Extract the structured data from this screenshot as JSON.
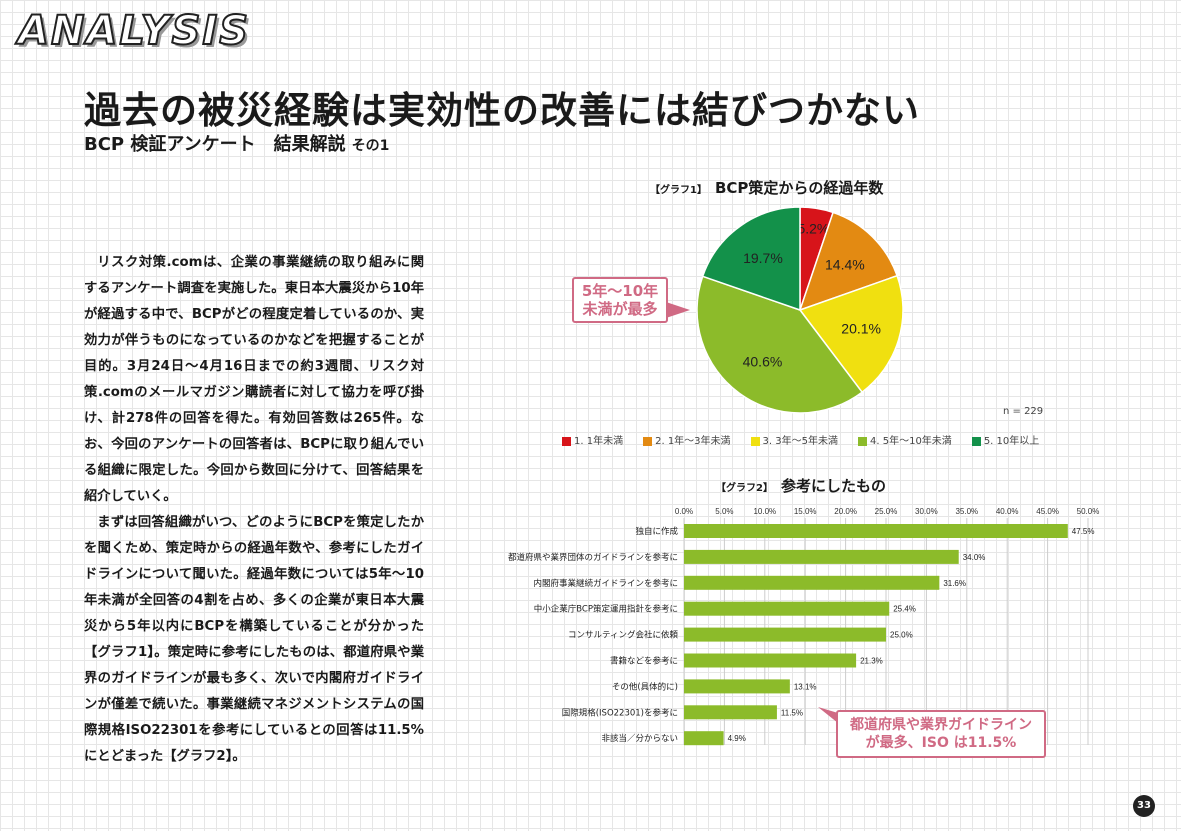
{
  "header": {
    "logo": "ANALYSIS",
    "title": "過去の被災経験は実効性の改善には結びつかない",
    "subtitle": "BCP 検証アンケート　結果解説",
    "subtitle_part": "その1"
  },
  "body": [
    "リスク対策.comは、企業の事業継続の取り組みに関するアンケート調査を実施した。東日本大震災から10年が経過する中で、BCPがどの程度定着しているのか、実効力が伴うものになっているのかなどを把握することが目的。3月24日～4月16日までの約3週間、リスク対策.comのメールマガジン購読者に対して協力を呼び掛け、計278件の回答を得た。有効回答数は265件。なお、今回のアンケートの回答者は、BCPに取り組んでいる組織に限定した。今回から数回に分けて、回答結果を紹介していく。",
    "まずは回答組織がいつ、どのようにBCPを策定したかを聞くため、策定時からの経過年数や、参考にしたガイドラインについて聞いた。経過年数については5年～10年未満が全回答の4割を占め、多くの企業が東日本大震災から5年以内にBCPを構築していることが分かった【グラフ1】。策定時に参考にしたものは、都道府県や業界のガイドラインが最も多く、次いで内閣府ガイドラインが僅差で続いた。事業継続マネジメントシステムの国際規格ISO22301を参考にしているとの回答は11.5%にとどまった【グラフ2】。"
  ],
  "page_number": "33",
  "chart_data": [
    {
      "type": "pie",
      "label": "【グラフ1】",
      "title": "BCP策定からの経過年数",
      "note": "n = 229",
      "categories": [
        "1. 1年未満",
        "2. 1年～3年未満",
        "3. 3年～5年未満",
        "4. 5年～10年未満",
        "5. 10年以上"
      ],
      "values": [
        5.2,
        14.4,
        20.1,
        40.6,
        19.7
      ],
      "value_labels": [
        "5.2%",
        "14.4%",
        "20.1%",
        "40.6%",
        "19.7%"
      ],
      "colors": [
        "#d7141a",
        "#e38a12",
        "#f0e010",
        "#8cbb2a",
        "#13914a"
      ],
      "callout": [
        "5年～10年",
        "未満が最多"
      ]
    },
    {
      "type": "bar",
      "orientation": "horizontal",
      "label": "【グラフ2】",
      "title": "参考にしたもの",
      "categories": [
        "独自に作成",
        "都道府県や業界団体のガイドラインを参考に",
        "内閣府事業継続ガイドラインを参考に",
        "中小企業庁BCP策定運用指針を参考に",
        "コンサルティング会社に依頼",
        "書籍などを参考に",
        "その他(具体的に)",
        "国際規格(ISO22301)を参考に",
        "非該当／分からない"
      ],
      "values": [
        47.5,
        34.0,
        31.6,
        25.4,
        25.0,
        21.3,
        13.1,
        11.5,
        4.9
      ],
      "value_labels": [
        "47.5%",
        "34.0%",
        "31.6%",
        "25.4%",
        "25.0%",
        "21.3%",
        "13.1%",
        "11.5%",
        "4.9%"
      ],
      "xlim": [
        0,
        50
      ],
      "ticks": [
        "0.0%",
        "5.0%",
        "10.0%",
        "15.0%",
        "20.0%",
        "25.0%",
        "30.0%",
        "35.0%",
        "40.0%",
        "45.0%",
        "50.0%"
      ],
      "color": "#8cbb2a",
      "grid": true,
      "callout": [
        "都道府県や業界ガイドライン",
        "が最多、ISO は11.5%"
      ]
    }
  ]
}
